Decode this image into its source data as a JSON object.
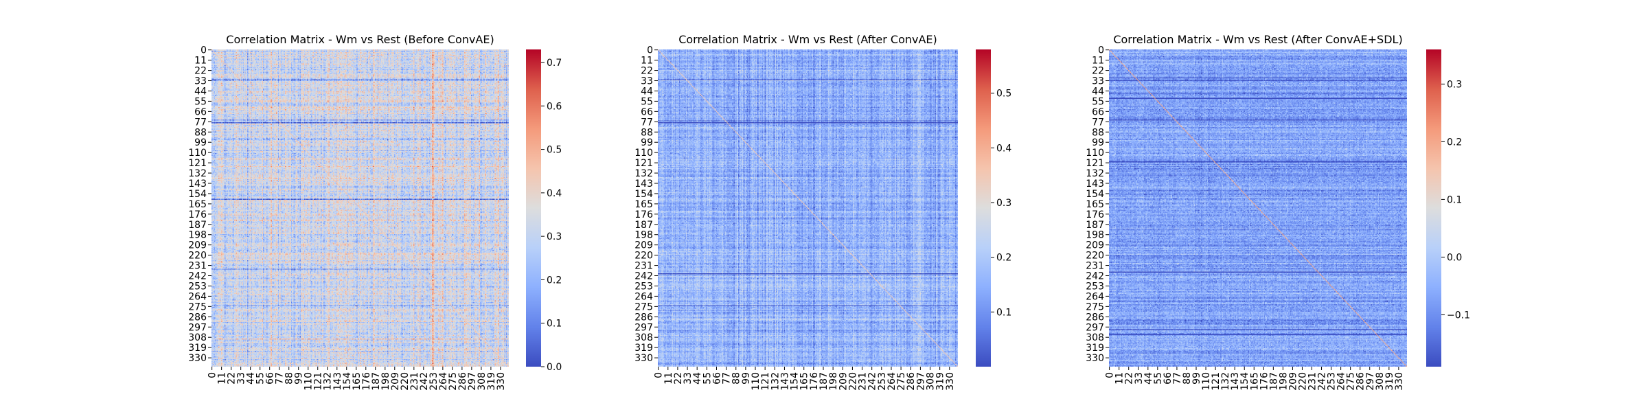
{
  "chart_data": [
    {
      "type": "heatmap",
      "title": "Correlation Matrix - Wm vs Rest (Before ConvAE)",
      "n": 340,
      "row_tick_labels": [
        "0",
        "11",
        "22",
        "33",
        "44",
        "55",
        "66",
        "77",
        "88",
        "99",
        "110",
        "121",
        "132",
        "143",
        "154",
        "165",
        "176",
        "187",
        "198",
        "209",
        "220",
        "231",
        "242",
        "253",
        "264",
        "275",
        "286",
        "297",
        "308",
        "319",
        "330"
      ],
      "col_tick_labels": [
        "0",
        "11",
        "22",
        "33",
        "44",
        "55",
        "66",
        "77",
        "88",
        "99",
        "110",
        "121",
        "132",
        "143",
        "154",
        "165",
        "176",
        "187",
        "198",
        "209",
        "220",
        "231",
        "242",
        "253",
        "264",
        "275",
        "286",
        "297",
        "308",
        "319",
        "330"
      ],
      "colorbar": {
        "vmin": 0.0,
        "vmax": 0.73,
        "ticks": [
          0.0,
          0.1,
          0.2,
          0.3,
          0.4,
          0.5,
          0.6,
          0.7
        ],
        "tick_labels": [
          "0.0",
          "0.1",
          "0.2",
          "0.3",
          "0.4",
          "0.5",
          "0.6",
          "0.7"
        ]
      },
      "colormap": "coolwarm",
      "base_mean": 0.33,
      "cell_noise": 0.09,
      "row_effect": 0.07,
      "col_effect": 0.08,
      "diagonal_value": 0.45,
      "low_rows": [
        32,
        75,
        78,
        160,
        235,
        274
      ],
      "high_cols": [
        252,
        253
      ]
    },
    {
      "type": "heatmap",
      "title": "Correlation Matrix - Wm vs Rest (After ConvAE)",
      "n": 340,
      "row_tick_labels": [
        "0",
        "11",
        "22",
        "33",
        "44",
        "55",
        "66",
        "77",
        "88",
        "99",
        "110",
        "121",
        "132",
        "143",
        "154",
        "165",
        "176",
        "187",
        "198",
        "209",
        "220",
        "231",
        "242",
        "253",
        "264",
        "275",
        "286",
        "297",
        "308",
        "319",
        "330"
      ],
      "col_tick_labels": [
        "0",
        "11",
        "22",
        "33",
        "44",
        "55",
        "66",
        "77",
        "88",
        "99",
        "110",
        "121",
        "132",
        "143",
        "154",
        "165",
        "176",
        "187",
        "198",
        "209",
        "220",
        "231",
        "242",
        "253",
        "264",
        "275",
        "286",
        "297",
        "308",
        "319",
        "330"
      ],
      "colorbar": {
        "vmin": 0.0,
        "vmax": 0.58,
        "ticks": [
          0.1,
          0.2,
          0.3,
          0.4,
          0.5
        ],
        "tick_labels": [
          "0.1",
          "0.2",
          "0.3",
          "0.4",
          "0.5"
        ]
      },
      "colormap": "coolwarm",
      "base_mean": 0.16,
      "cell_noise": 0.05,
      "row_effect": 0.04,
      "col_effect": 0.05,
      "diagonal_value": 0.35,
      "low_rows": [
        32,
        76,
        78,
        240,
        274
      ],
      "high_cols": []
    },
    {
      "type": "heatmap",
      "title": "Correlation Matrix - Wm vs Rest (After ConvAE+SDL)",
      "n": 340,
      "row_tick_labels": [
        "0",
        "11",
        "22",
        "33",
        "44",
        "55",
        "66",
        "77",
        "88",
        "99",
        "110",
        "121",
        "132",
        "143",
        "154",
        "165",
        "176",
        "187",
        "198",
        "209",
        "220",
        "231",
        "242",
        "253",
        "264",
        "275",
        "286",
        "297",
        "308",
        "319",
        "330"
      ],
      "col_tick_labels": [
        "0",
        "11",
        "22",
        "33",
        "44",
        "55",
        "66",
        "77",
        "88",
        "99",
        "110",
        "121",
        "132",
        "143",
        "154",
        "165",
        "176",
        "187",
        "198",
        "209",
        "220",
        "231",
        "242",
        "253",
        "264",
        "275",
        "286",
        "297",
        "308",
        "319",
        "330"
      ],
      "colorbar": {
        "vmin": -0.19,
        "vmax": 0.36,
        "ticks": [
          -0.1,
          0.0,
          0.1,
          0.2,
          0.3
        ],
        "tick_labels": [
          "−0.1",
          "0.0",
          "0.1",
          "0.2",
          "0.3"
        ]
      },
      "colormap": "coolwarm",
      "base_mean": -0.07,
      "cell_noise": 0.05,
      "row_effect": 0.04,
      "col_effect": 0.015,
      "diagonal_value": 0.2,
      "low_rows": [
        30,
        33,
        52,
        75,
        120,
        238,
        300,
        305
      ],
      "high_cols": []
    }
  ]
}
